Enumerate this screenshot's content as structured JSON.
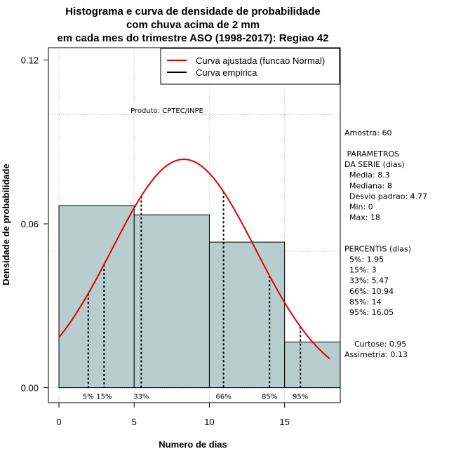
{
  "chart_data": {
    "type": "bar",
    "title": [
      "Histograma e curva de densidade de probabilidade",
      "com chuva acima de 2 mm",
      "em cada mes do trimestre ASO (1998-2017): Regiao 42"
    ],
    "xlabel": "Numero de dias",
    "ylabel": "Densidade de probabilidade",
    "xlim": [
      -0.7,
      18.7
    ],
    "ylim": [
      -0.0055,
      0.1245
    ],
    "x_ticks": [
      0,
      5,
      10,
      15
    ],
    "x_tick_labels": [
      "0",
      "5",
      "10",
      "15"
    ],
    "y_ticks": [
      0.0,
      0.06,
      0.12
    ],
    "y_tick_labels": [
      "0.00",
      "0.06",
      "0.12"
    ],
    "grid": true,
    "bins": [
      {
        "start": 0,
        "end": 5,
        "density": 0.0667
      },
      {
        "start": 5,
        "end": 10,
        "density": 0.0633
      },
      {
        "start": 10,
        "end": 15,
        "density": 0.0533
      },
      {
        "start": 15,
        "end": 18.7,
        "density": 0.0167
      }
    ],
    "normal_fit": {
      "mean": 8.3,
      "sd": 4.77,
      "x_from": 0,
      "x_to": 18
    },
    "percentile_lines": [
      {
        "label": "5%",
        "x": 1.95
      },
      {
        "label": "15%",
        "x": 3
      },
      {
        "label": "33%",
        "x": 5.47
      },
      {
        "label": "66%",
        "x": 10.94
      },
      {
        "label": "85%",
        "x": 14
      },
      {
        "label": "95%",
        "x": 16.05
      }
    ],
    "legend": {
      "position": "top-right",
      "entries": [
        {
          "name": "Curva ajustada (funcao Normal)",
          "color": "#e00000"
        },
        {
          "name": "Curva empirica",
          "color": "#000000"
        }
      ]
    },
    "colors": {
      "bar_fill": "#b8cdcd",
      "bar_stroke": "#000000",
      "curve": "#e00000",
      "grid": "#bbbbbb"
    },
    "annotation_product": "Produto: CPTEC/INPE",
    "stats_panel": [
      "Amostra: 60",
      "",
      " PARAMETROS",
      "DA SERIE (dias)",
      "  Media: 8.3",
      "  Mediana: 8",
      "  Desvio padrao: 4.77",
      "  Min: 0",
      "  Max: 18",
      "",
      "",
      "PERCENTIS (dias)",
      "  5%: 1.95",
      "  15%: 3",
      "  33%: 5.47",
      "  66%: 10.94",
      "  85%: 14",
      "  95%: 16.05",
      "",
      "",
      "    Curtose: 0.95",
      "Assimetria: 0.13"
    ]
  }
}
